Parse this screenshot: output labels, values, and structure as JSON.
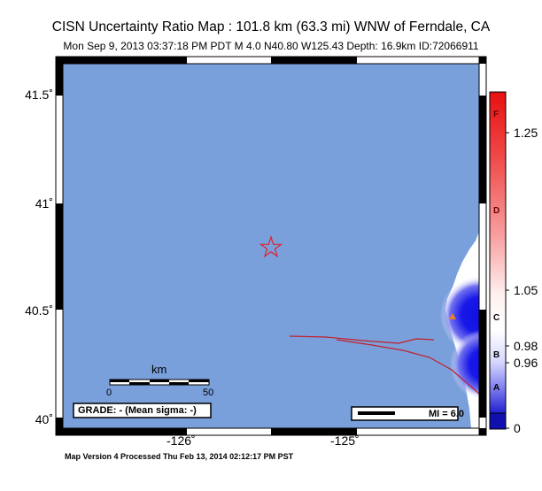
{
  "title": "CISN Uncertainty Ratio Map : 101.8 km (63.3 mi) WNW of Ferndale, CA",
  "subtitle": "Mon Sep  9, 2013 03:37:18 PM PDT   M 4.0    N40.80 W125.43   Depth: 16.9km    ID:72066911",
  "lat_labels": {
    "l415": "41.5˚",
    "l41": "41˚",
    "l405": "40.5˚",
    "l40": "40˚"
  },
  "lon_labels": {
    "m126": "-126˚",
    "m125": "-125˚"
  },
  "colorbar": {
    "letters": {
      "f": "F",
      "d": "D",
      "c": "C",
      "b": "B",
      "a": "A"
    },
    "values": {
      "v125": "1.25",
      "v105": "1.05",
      "v098": "0.98",
      "v096": "0.96",
      "v0": "0"
    }
  },
  "scale": {
    "title": "km",
    "start": "0",
    "end": "50"
  },
  "grade": "GRADE: - (Mean sigma: -)",
  "mi_legend": "MI = 6.0",
  "footer": "Map Version 4 Processed Thu Feb 13, 2014 02:12:17 PM PST",
  "colors": {
    "ocean": "#7aa0dc",
    "land": "#ffffff",
    "fault": "#c0202a",
    "epicenter": "#e0202a",
    "station": "#f08020"
  }
}
